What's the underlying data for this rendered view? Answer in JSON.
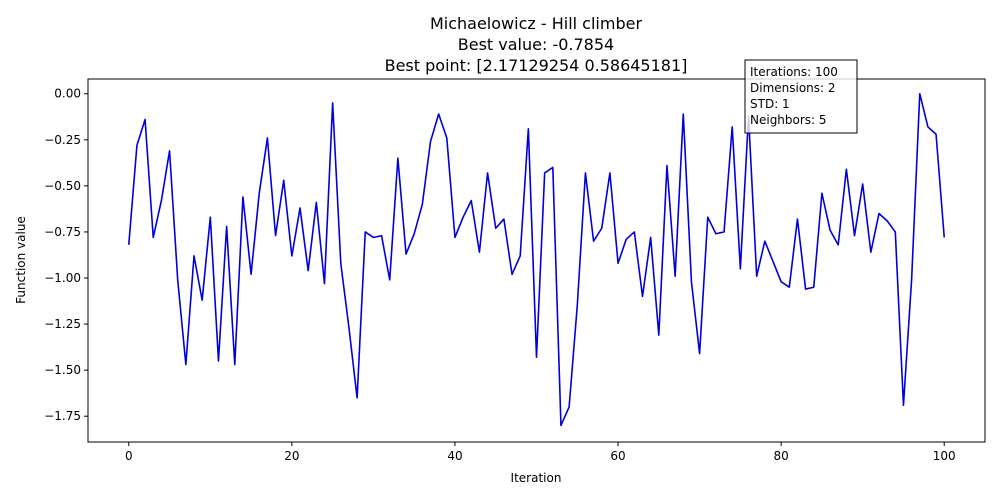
{
  "chart_data": {
    "type": "line",
    "title_lines": [
      "Michaelowicz - Hill climber",
      "Best value: -0.7854",
      "Best point: [2.17129254 0.58645181]"
    ],
    "xlabel": "Iteration",
    "ylabel": "Function value",
    "xlim": [
      -5,
      105
    ],
    "ylim": [
      -1.89,
      0.08
    ],
    "x_ticks": [
      0,
      20,
      40,
      60,
      80,
      100
    ],
    "x_tick_labels": [
      "0",
      "20",
      "40",
      "60",
      "80",
      "100"
    ],
    "y_ticks": [
      0.0,
      -0.25,
      -0.5,
      -0.75,
      -1.0,
      -1.25,
      -1.5,
      -1.75
    ],
    "y_tick_labels": [
      "0.00",
      "−0.25",
      "−0.50",
      "−0.75",
      "−1.00",
      "−1.25",
      "−1.50",
      "−1.75"
    ],
    "grid": false,
    "line_color": "#0000dd",
    "series": [
      {
        "x": [
          0,
          1,
          2,
          3,
          4,
          5,
          6,
          7,
          8,
          9,
          10,
          11,
          12,
          13,
          14,
          15,
          16,
          17,
          18,
          19,
          20,
          21,
          22,
          23,
          24,
          25,
          26,
          27,
          28,
          29,
          30,
          31,
          32,
          33,
          34,
          35,
          36,
          37,
          38,
          39,
          40,
          41,
          42,
          43,
          44,
          45,
          46,
          47,
          48,
          49,
          50,
          51,
          52,
          53,
          54,
          55,
          56,
          57,
          58,
          59,
          60,
          61,
          62,
          63,
          64,
          65,
          66,
          67,
          68,
          69,
          70,
          71,
          72,
          73,
          74,
          75,
          76,
          77,
          78,
          79,
          80,
          81,
          82,
          83,
          84,
          85,
          86,
          87,
          88,
          89,
          90,
          91,
          92,
          93,
          94,
          95,
          96,
          97,
          98,
          99,
          100
        ],
        "values": [
          -0.82,
          -0.28,
          -0.14,
          -0.78,
          -0.58,
          -0.31,
          -1.01,
          -1.47,
          -0.88,
          -1.12,
          -0.67,
          -1.45,
          -0.72,
          -1.47,
          -0.56,
          -0.98,
          -0.54,
          -0.24,
          -0.77,
          -0.47,
          -0.88,
          -0.62,
          -0.96,
          -0.59,
          -1.03,
          -0.05,
          -0.92,
          -1.27,
          -1.65,
          -0.75,
          -0.78,
          -0.77,
          -1.01,
          -0.35,
          -0.87,
          -0.76,
          -0.6,
          -0.26,
          -0.11,
          -0.24,
          -0.78,
          -0.67,
          -0.58,
          -0.86,
          -0.43,
          -0.73,
          -0.68,
          -0.98,
          -0.88,
          -0.19,
          -1.43,
          -0.43,
          -0.4,
          -1.8,
          -1.7,
          -1.15,
          -0.43,
          -0.8,
          -0.73,
          -0.43,
          -0.92,
          -0.79,
          -0.75,
          -1.1,
          -0.78,
          -1.31,
          -0.39,
          -0.99,
          -0.11,
          -1.02,
          -1.41,
          -0.67,
          -0.76,
          -0.75,
          -0.18,
          -0.95,
          -0.12,
          -0.99,
          -0.8,
          -0.91,
          -1.02,
          -1.05,
          -0.68,
          -1.06,
          -1.05,
          -0.54,
          -0.74,
          -0.82,
          -0.41,
          -0.77,
          -0.49,
          -0.86,
          -0.65,
          -0.69,
          -0.75,
          -1.69,
          -1.01,
          0.0,
          -0.18,
          -0.22,
          -0.78
        ]
      }
    ]
  },
  "info_box": {
    "lines": [
      "Iterations: 100",
      "Dimensions: 2",
      "STD: 1",
      "Neighbors: 5"
    ]
  }
}
